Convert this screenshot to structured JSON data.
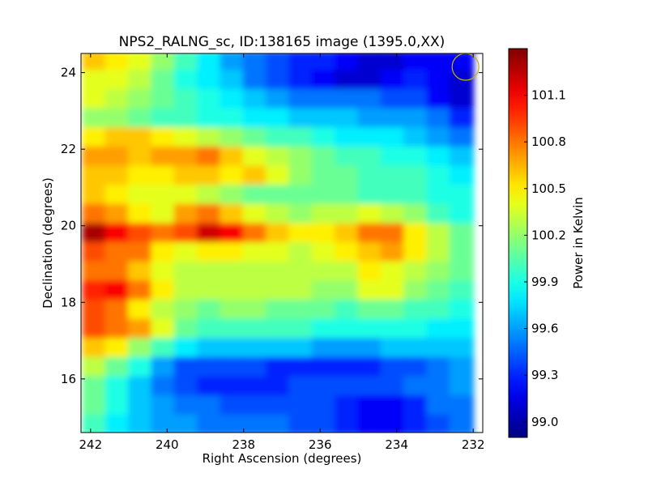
{
  "chart_data": {
    "type": "heatmap",
    "title": "NPS2_RALNG_sc, ID:138165 image (1395.0,XX)",
    "xlabel": "Right Ascension (degrees)",
    "ylabel": "Declination (degrees)",
    "xlim": [
      242.25,
      231.75
    ],
    "ylim": [
      14.6,
      24.5
    ],
    "xticks": [
      242,
      240,
      238,
      236,
      234,
      232
    ],
    "yticks": [
      16,
      18,
      20,
      22,
      24
    ],
    "xtick_labels": [
      "242",
      "240",
      "238",
      "236",
      "234",
      "232"
    ],
    "ytick_labels": [
      "16",
      "18",
      "20",
      "22",
      "24"
    ],
    "colorbar": {
      "label": "Power in Kelvin",
      "vmin": 98.9,
      "vmax": 101.4,
      "ticks": [
        99.0,
        99.3,
        99.6,
        99.9,
        100.2,
        100.5,
        100.8,
        101.1
      ],
      "tick_labels": [
        "99.0",
        "99.3",
        "99.6",
        "99.9",
        "100.2",
        "100.5",
        "100.8",
        "101.1"
      ],
      "colormap": "jet"
    },
    "beam_marker": {
      "ra": 232.2,
      "dec": 24.15,
      "radius_deg": 0.35,
      "color": "#c8b400"
    },
    "dec_rows": [
      24.3,
      23.8,
      23.3,
      22.8,
      22.3,
      21.8,
      21.3,
      20.8,
      20.3,
      19.8,
      19.3,
      18.8,
      18.3,
      17.8,
      17.3,
      16.8,
      16.3,
      15.8,
      15.3,
      14.8
    ],
    "ra_cols": [
      241.9,
      241.3,
      240.7,
      240.1,
      239.5,
      238.9,
      238.3,
      237.7,
      237.1,
      236.5,
      235.9,
      235.3,
      234.7,
      234.1,
      233.5,
      232.9,
      232.3
    ],
    "values": [
      [
        100.6,
        100.5,
        100.4,
        100.2,
        100.0,
        99.8,
        99.6,
        99.5,
        99.4,
        99.3,
        99.3,
        99.2,
        99.1,
        99.1,
        99.2,
        99.2,
        99.2
      ],
      [
        100.4,
        100.4,
        100.3,
        100.1,
        99.9,
        99.8,
        99.7,
        99.5,
        99.4,
        99.3,
        99.2,
        99.1,
        99.1,
        99.2,
        99.3,
        99.2,
        99.1
      ],
      [
        100.4,
        100.3,
        100.2,
        100.1,
        100.0,
        99.9,
        99.8,
        99.7,
        99.6,
        99.5,
        99.5,
        99.5,
        99.5,
        99.4,
        99.4,
        99.2,
        99.1
      ],
      [
        100.2,
        100.2,
        100.1,
        100.0,
        100.0,
        99.9,
        99.9,
        99.8,
        99.8,
        99.7,
        99.7,
        99.7,
        99.6,
        99.6,
        99.6,
        99.5,
        99.3
      ],
      [
        100.5,
        100.6,
        100.6,
        100.5,
        100.4,
        100.3,
        100.2,
        100.1,
        100.0,
        100.0,
        99.9,
        99.8,
        99.8,
        99.8,
        99.7,
        99.6,
        99.5
      ],
      [
        100.7,
        100.7,
        100.6,
        100.7,
        100.7,
        100.8,
        100.6,
        100.4,
        100.3,
        100.2,
        100.1,
        100.0,
        100.0,
        99.9,
        99.9,
        99.8,
        99.7
      ],
      [
        100.6,
        100.6,
        100.5,
        100.5,
        100.6,
        100.6,
        100.5,
        100.6,
        100.4,
        100.2,
        100.1,
        100.1,
        100.0,
        100.0,
        100.0,
        99.9,
        99.8
      ],
      [
        100.6,
        100.5,
        100.4,
        100.4,
        100.4,
        100.3,
        100.2,
        100.1,
        100.1,
        100.1,
        100.1,
        100.1,
        100.0,
        100.0,
        100.0,
        99.9,
        99.9
      ],
      [
        100.8,
        100.7,
        100.5,
        100.4,
        100.7,
        100.8,
        100.6,
        100.4,
        100.3,
        100.2,
        100.3,
        100.3,
        100.4,
        100.3,
        100.2,
        100.0,
        99.9
      ],
      [
        101.3,
        101.1,
        100.9,
        100.8,
        100.9,
        101.2,
        101.1,
        100.8,
        100.6,
        100.5,
        100.5,
        100.6,
        100.8,
        100.8,
        100.5,
        100.3,
        100.1
      ],
      [
        100.9,
        100.8,
        100.8,
        100.5,
        100.4,
        100.5,
        100.5,
        100.4,
        100.4,
        100.3,
        100.4,
        100.5,
        100.6,
        100.7,
        100.5,
        100.3,
        100.1
      ],
      [
        100.8,
        100.8,
        100.6,
        100.4,
        100.3,
        100.3,
        100.3,
        100.3,
        100.3,
        100.3,
        100.3,
        100.3,
        100.5,
        100.4,
        100.3,
        100.2,
        100.1
      ],
      [
        101.0,
        101.1,
        100.8,
        100.5,
        100.3,
        100.3,
        100.3,
        100.3,
        100.3,
        100.3,
        100.2,
        100.2,
        100.4,
        100.4,
        100.2,
        100.1,
        100.0
      ],
      [
        100.9,
        100.8,
        100.5,
        100.3,
        100.2,
        100.1,
        100.2,
        100.2,
        100.1,
        100.1,
        100.1,
        100.0,
        100.1,
        100.1,
        100.0,
        100.0,
        99.9
      ],
      [
        100.9,
        100.8,
        100.7,
        100.4,
        100.1,
        100.0,
        100.0,
        100.0,
        100.0,
        100.0,
        99.9,
        99.9,
        99.9,
        99.9,
        99.9,
        99.8,
        99.8
      ],
      [
        100.6,
        100.5,
        100.2,
        100.0,
        99.8,
        99.7,
        99.7,
        99.7,
        99.7,
        99.7,
        99.6,
        99.6,
        99.6,
        99.7,
        99.7,
        99.7,
        99.7
      ],
      [
        100.3,
        100.1,
        99.9,
        99.6,
        99.4,
        99.4,
        99.4,
        99.4,
        99.3,
        99.3,
        99.3,
        99.3,
        99.3,
        99.4,
        99.4,
        99.5,
        99.6
      ],
      [
        100.1,
        99.9,
        99.7,
        99.5,
        99.4,
        99.3,
        99.3,
        99.3,
        99.3,
        99.4,
        99.4,
        99.4,
        99.4,
        99.4,
        99.5,
        99.5,
        99.6
      ],
      [
        100.1,
        99.9,
        99.7,
        99.6,
        99.5,
        99.5,
        99.4,
        99.4,
        99.4,
        99.4,
        99.4,
        99.3,
        99.2,
        99.2,
        99.3,
        99.5,
        99.5
      ],
      [
        100.0,
        99.8,
        99.7,
        99.6,
        99.6,
        99.5,
        99.5,
        99.5,
        99.5,
        99.4,
        99.4,
        99.3,
        99.2,
        99.2,
        99.3,
        99.4,
        99.5
      ]
    ]
  }
}
